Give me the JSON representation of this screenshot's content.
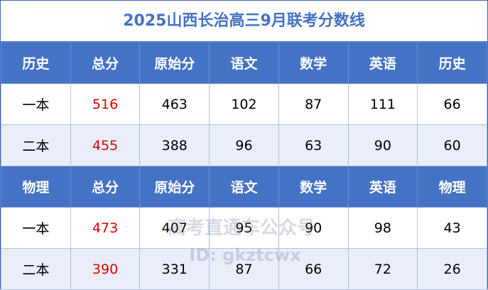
{
  "title": "2025山西长治高三9月联考分数线",
  "sections": [
    {
      "headers": [
        "历史",
        "总分",
        "原始分",
        "语文",
        "数学",
        "英语",
        "历史"
      ],
      "rows": [
        [
          "一本",
          "516",
          "463",
          "102",
          "87",
          "111",
          "66"
        ],
        [
          "二本",
          "455",
          "388",
          "96",
          "63",
          "90",
          "60"
        ]
      ]
    },
    {
      "headers": [
        "物理",
        "总分",
        "原始分",
        "语文",
        "数学",
        "英语",
        "物理"
      ],
      "rows": [
        [
          "一本",
          "473",
          "407",
          "95",
          "90",
          "98",
          "43"
        ],
        [
          "二本",
          "390",
          "331",
          "87",
          "66",
          "72",
          "26"
        ]
      ]
    }
  ],
  "watermark": {
    "line1": "高考直通车公众号",
    "line2": "ID: gkztcwx"
  },
  "colors": {
    "header_bg": "#4472c4",
    "title": "#4472c4",
    "total": "#e00000",
    "alt_row": "#e9eef8"
  }
}
